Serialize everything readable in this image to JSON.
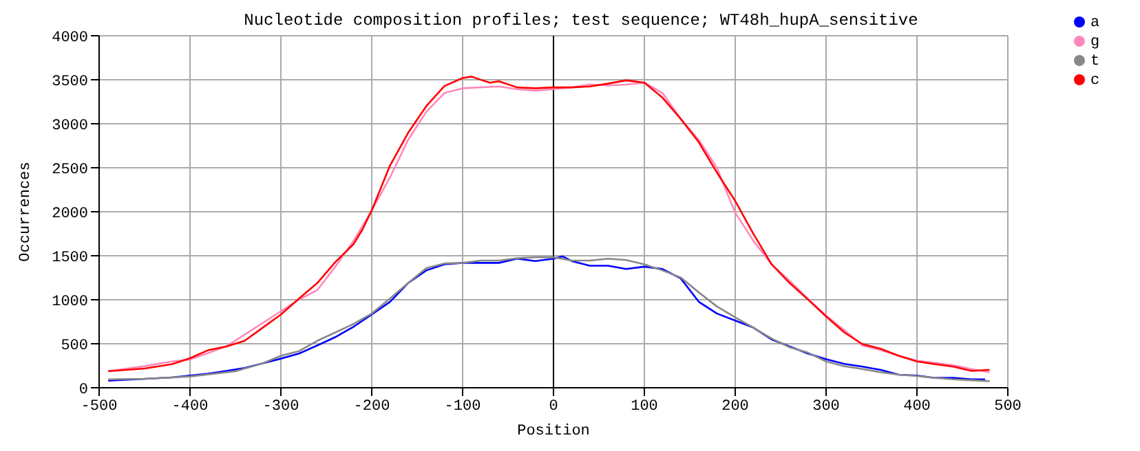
{
  "chart_data": {
    "type": "line",
    "title": "Nucleotide composition profiles; test sequence; WT48h_hupA_sensitive",
    "xlabel": "Position",
    "ylabel": "Occurrences",
    "xlim": [
      -500,
      500
    ],
    "xticks": [
      -500,
      -400,
      -300,
      -200,
      -100,
      0,
      100,
      200,
      300,
      400,
      500
    ],
    "ylim": [
      0,
      4000
    ],
    "yticks": [
      0,
      500,
      1000,
      1500,
      2000,
      2500,
      3000,
      3500,
      4000
    ],
    "grid": true,
    "legend": "top right",
    "marker": "none",
    "line_style": "solid",
    "ref_lines": [
      {
        "axis": "x",
        "value": 0,
        "color": "#000000"
      }
    ],
    "series": [
      {
        "name": "a",
        "color": "#0000ff",
        "x": [
          -490,
          -460,
          -420,
          -400,
          -380,
          -360,
          -340,
          -320,
          -300,
          -280,
          -260,
          -240,
          -220,
          -200,
          -180,
          -160,
          -140,
          -120,
          -100,
          -80,
          -60,
          -40,
          -20,
          0,
          10,
          20,
          40,
          60,
          80,
          100,
          120,
          140,
          160,
          180,
          200,
          220,
          240,
          260,
          280,
          300,
          320,
          340,
          360,
          380,
          400,
          420,
          440,
          460,
          475
        ],
        "values": [
          80,
          96,
          117,
          139,
          160,
          192,
          224,
          277,
          331,
          389,
          480,
          576,
          693,
          832,
          976,
          1189,
          1333,
          1403,
          1419,
          1419,
          1419,
          1467,
          1440,
          1467,
          1493,
          1440,
          1387,
          1387,
          1349,
          1376,
          1349,
          1243,
          976,
          843,
          763,
          683,
          549,
          469,
          389,
          325,
          272,
          240,
          203,
          149,
          139,
          112,
          112,
          96,
          96
        ]
      },
      {
        "name": "g",
        "color": "#ff88bb",
        "x": [
          -490,
          -450,
          -420,
          -400,
          -360,
          -300,
          -280,
          -260,
          -240,
          -220,
          -200,
          -180,
          -160,
          -140,
          -120,
          -100,
          -60,
          -40,
          -20,
          0,
          20,
          40,
          60,
          80,
          100,
          120,
          140,
          160,
          180,
          200,
          220,
          240,
          260,
          280,
          300,
          320,
          340,
          360,
          380,
          400,
          420,
          440,
          460,
          480
        ],
        "values": [
          190,
          245,
          299,
          320,
          470,
          869,
          1003,
          1109,
          1376,
          1669,
          2016,
          2389,
          2816,
          3136,
          3349,
          3403,
          3424,
          3392,
          3376,
          3392,
          3413,
          3445,
          3435,
          3445,
          3467,
          3349,
          3056,
          2816,
          2496,
          1989,
          1669,
          1403,
          1216,
          1013,
          821,
          656,
          480,
          427,
          363,
          309,
          283,
          256,
          213,
          176
        ]
      },
      {
        "name": "t",
        "color": "#888888",
        "x": [
          -490,
          -450,
          -400,
          -350,
          -320,
          -300,
          -280,
          -260,
          -240,
          -220,
          -200,
          -180,
          -160,
          -140,
          -120,
          -100,
          -80,
          -60,
          -40,
          -20,
          0,
          20,
          40,
          60,
          80,
          100,
          120,
          140,
          160,
          180,
          200,
          220,
          240,
          260,
          280,
          300,
          320,
          340,
          360,
          380,
          400,
          420,
          440,
          460,
          480
        ],
        "values": [
          96,
          101,
          128,
          187,
          277,
          363,
          416,
          533,
          629,
          725,
          843,
          1013,
          1189,
          1360,
          1413,
          1419,
          1445,
          1445,
          1472,
          1483,
          1483,
          1445,
          1445,
          1467,
          1451,
          1403,
          1333,
          1253,
          1083,
          923,
          800,
          683,
          560,
          459,
          400,
          299,
          245,
          213,
          176,
          149,
          133,
          112,
          96,
          85,
          75
        ]
      },
      {
        "name": "c",
        "color": "#ff0000",
        "x": [
          -490,
          -450,
          -420,
          -400,
          -380,
          -360,
          -340,
          -320,
          -300,
          -280,
          -260,
          -240,
          -220,
          -210,
          -200,
          -180,
          -160,
          -140,
          -120,
          -100,
          -90,
          -80,
          -70,
          -60,
          -40,
          -20,
          0,
          20,
          40,
          60,
          80,
          100,
          120,
          140,
          160,
          180,
          200,
          220,
          240,
          260,
          280,
          300,
          320,
          340,
          360,
          380,
          400,
          420,
          440,
          460,
          480
        ],
        "values": [
          187,
          219,
          267,
          336,
          427,
          469,
          533,
          683,
          832,
          1013,
          1189,
          1429,
          1632,
          1803,
          2016,
          2523,
          2896,
          3200,
          3429,
          3520,
          3536,
          3499,
          3467,
          3483,
          3413,
          3403,
          3413,
          3413,
          3424,
          3456,
          3493,
          3467,
          3296,
          3056,
          2789,
          2443,
          2123,
          1749,
          1403,
          1189,
          1003,
          811,
          629,
          496,
          443,
          363,
          299,
          267,
          240,
          192,
          203
        ]
      }
    ]
  }
}
